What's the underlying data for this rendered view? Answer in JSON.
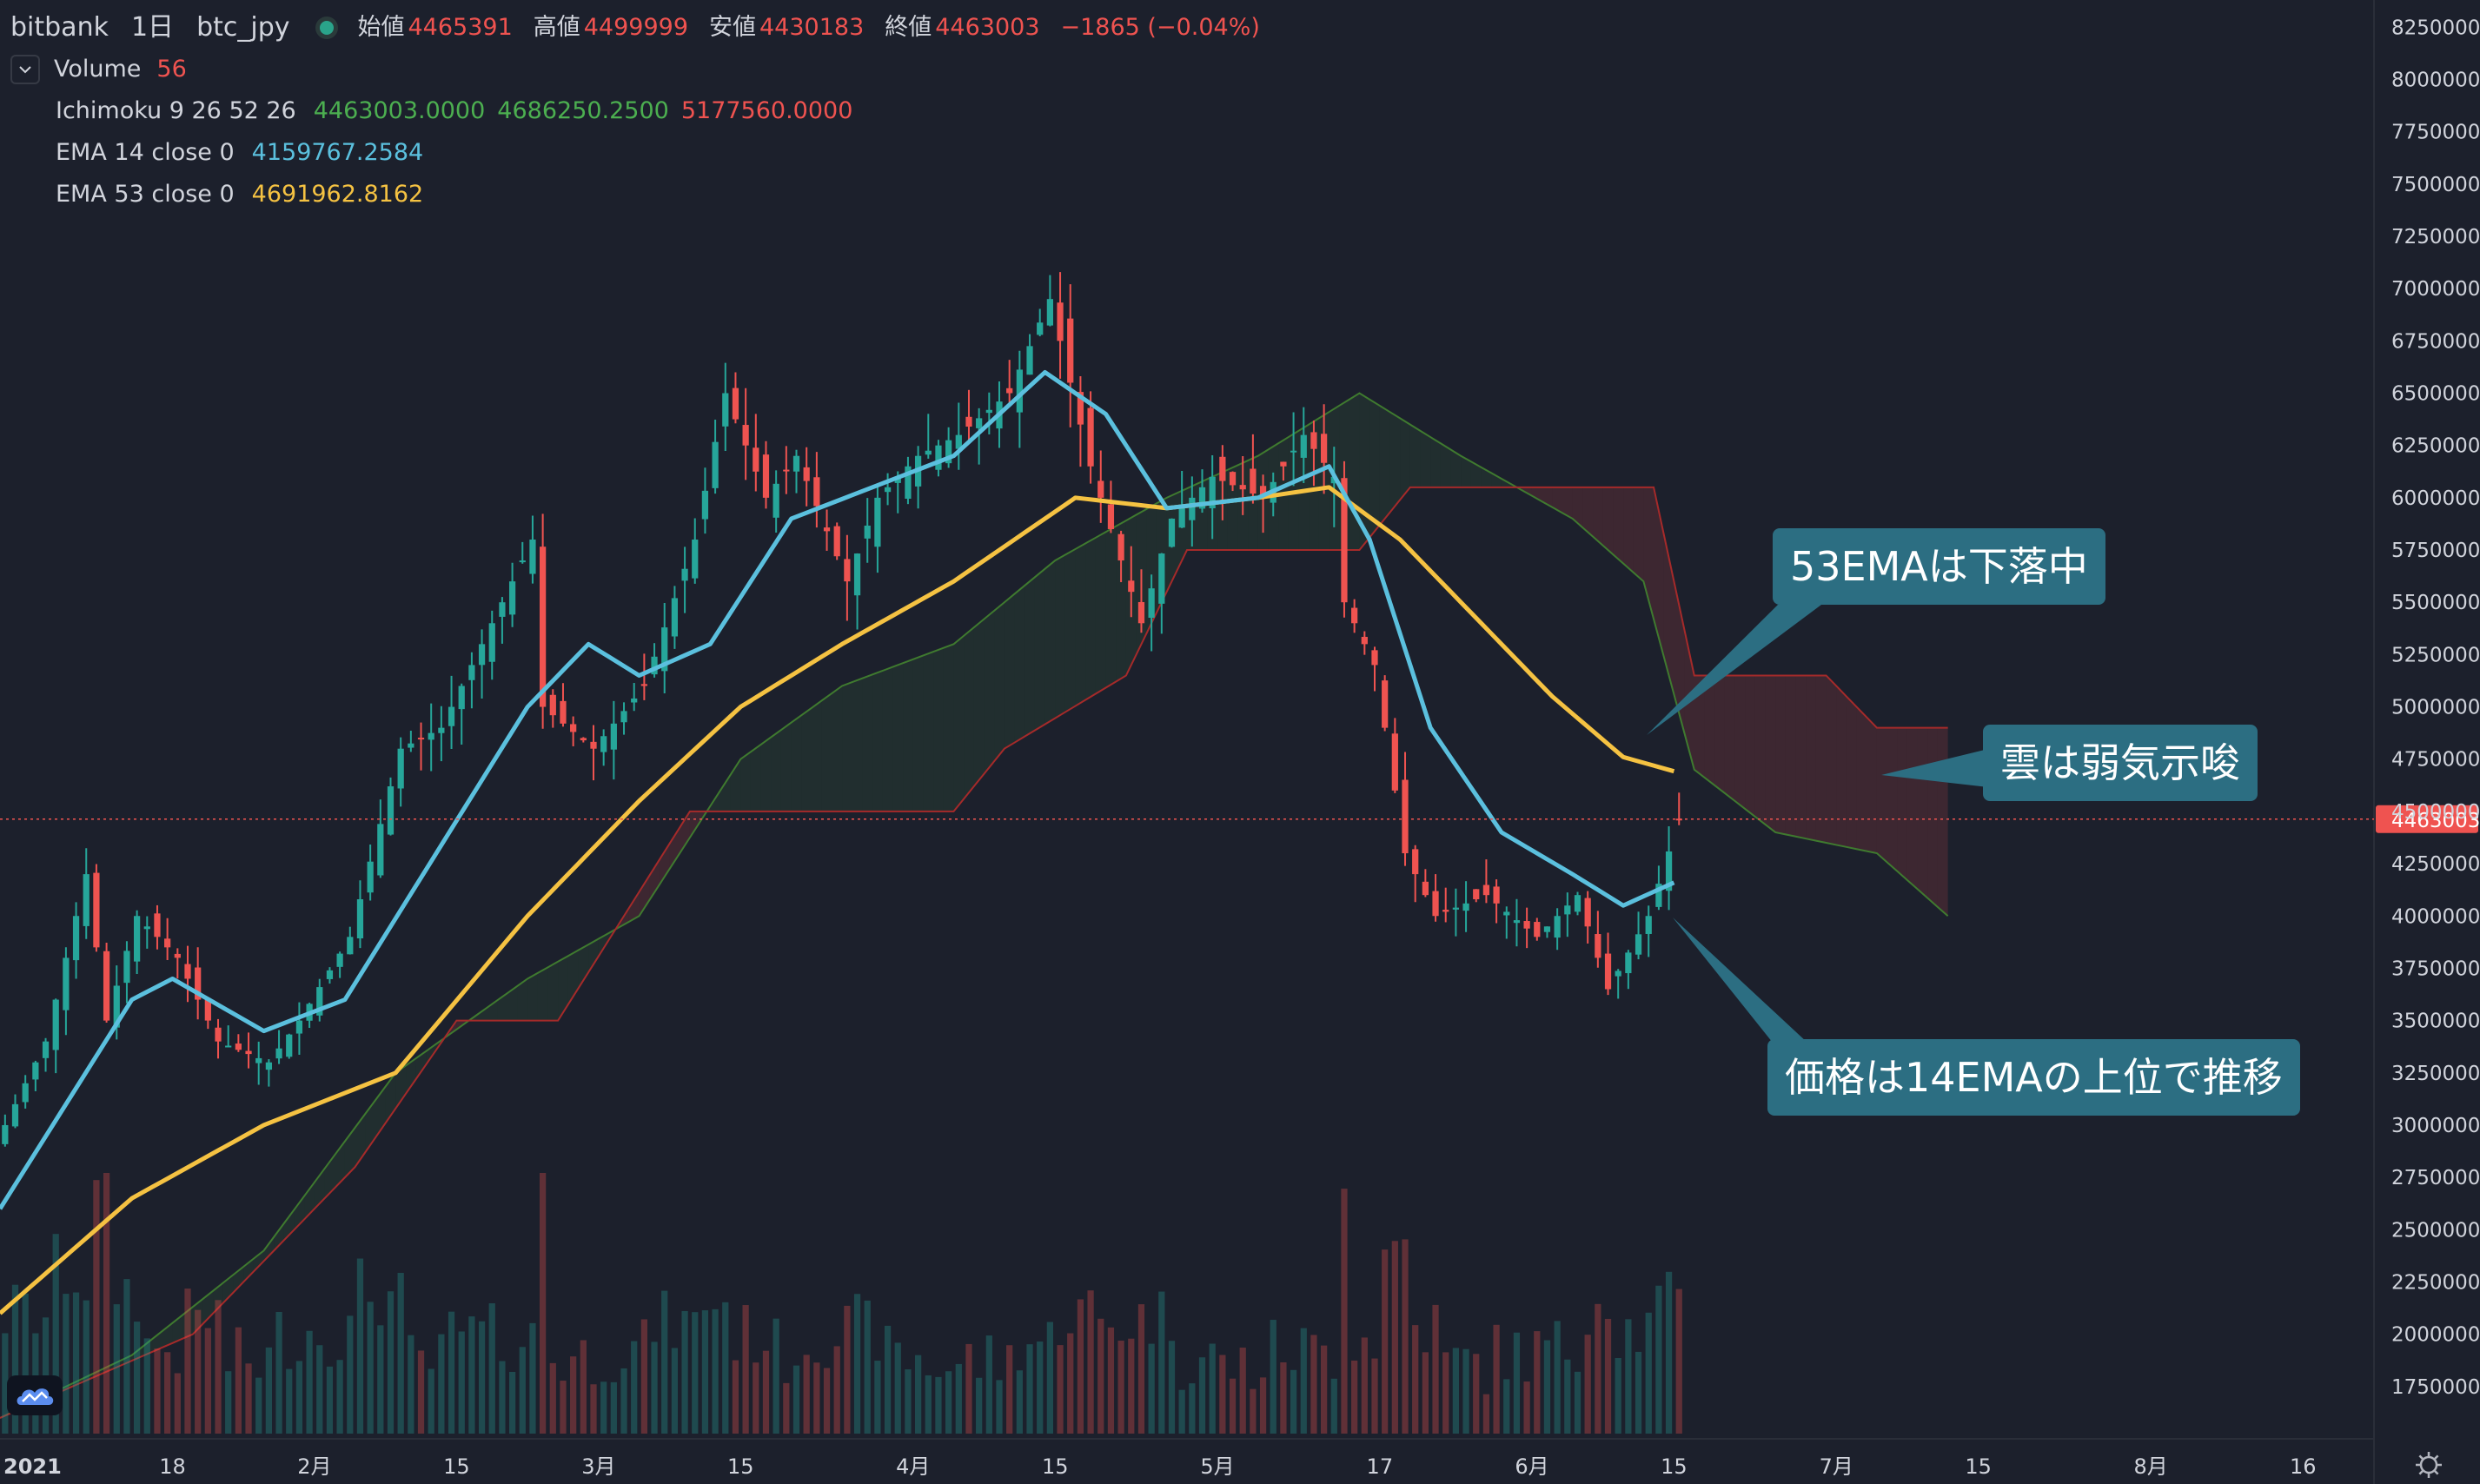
{
  "header": {
    "exchange": "bitbank",
    "interval": "1日",
    "symbol": "btc_jpy",
    "open_label": "始値",
    "open": "4465391",
    "high_label": "高値",
    "high": "4499999",
    "low_label": "安値",
    "low": "4430183",
    "close_label": "終値",
    "close": "4463003",
    "change": "−1865 (−0.04%)"
  },
  "indicators": {
    "volume": {
      "label": "Volume",
      "value": "56"
    },
    "ichimoku": {
      "label": "Ichimoku 9 26 52 26",
      "v1": "4463003.0000",
      "v2": "4686250.2500",
      "v3": "5177560.0000"
    },
    "ema14": {
      "label": "EMA 14 close 0",
      "value": "4159767.2584"
    },
    "ema53": {
      "label": "EMA 53 close 0",
      "value": "4691962.8162"
    }
  },
  "price_tag": "4463003",
  "callouts": {
    "ema53": "53EMAは下落中",
    "cloud": "雲は弱気示唆",
    "price": "価格は14EMAの上位で推移"
  },
  "colors": {
    "background": "#1c202c",
    "up": "#26a69a",
    "down": "#ef5350",
    "ema14": "#5bc0de",
    "ema53": "#f5c242",
    "span_a": "#4caf50",
    "span_b": "#ef5350",
    "callout": "#2c6e82"
  },
  "chart_data": {
    "type": "candlestick",
    "y_axis_ticks": [
      8250000,
      8000000,
      7750000,
      7500000,
      7250000,
      7000000,
      6750000,
      6500000,
      6250000,
      6000000,
      5750000,
      5500000,
      5250000,
      5000000,
      4750000,
      4500000,
      4250000,
      4000000,
      3750000,
      3500000,
      3250000,
      3000000,
      2750000,
      2500000,
      2250000,
      2000000,
      1750000
    ],
    "ylim": [
      1500000,
      8380000
    ],
    "x_axis_labels": [
      {
        "label": "2021",
        "date": "2021-01-01"
      },
      {
        "label": "18",
        "date": "2021-01-18"
      },
      {
        "label": "2月",
        "date": "2021-02-01"
      },
      {
        "label": "15",
        "date": "2021-02-15"
      },
      {
        "label": "3月",
        "date": "2021-03-01"
      },
      {
        "label": "15",
        "date": "2021-03-15"
      },
      {
        "label": "4月",
        "date": "2021-04-01"
      },
      {
        "label": "15",
        "date": "2021-04-15"
      },
      {
        "label": "5月",
        "date": "2021-05-01"
      },
      {
        "label": "17",
        "date": "2021-05-17"
      },
      {
        "label": "6月",
        "date": "2021-06-01"
      },
      {
        "label": "15",
        "date": "2021-06-15"
      },
      {
        "label": "7月",
        "date": "2021-07-01"
      },
      {
        "label": "15",
        "date": "2021-07-15"
      },
      {
        "label": "8月",
        "date": "2021-08-01"
      },
      {
        "label": "16",
        "date": "2021-08-16"
      }
    ],
    "xlim": [
      "2021-01-01",
      "2021-08-23"
    ],
    "close_keypoints": [
      [
        "2021-01-01",
        3000000
      ],
      [
        "2021-01-05",
        3400000
      ],
      [
        "2021-01-09",
        4200000
      ],
      [
        "2021-01-11",
        3500000
      ],
      [
        "2021-01-14",
        4000000
      ],
      [
        "2021-01-18",
        3800000
      ],
      [
        "2021-01-22",
        3400000
      ],
      [
        "2021-01-27",
        3300000
      ],
      [
        "2021-01-30",
        3500000
      ],
      [
        "2021-02-04",
        3900000
      ],
      [
        "2021-02-09",
        4800000
      ],
      [
        "2021-02-13",
        4900000
      ],
      [
        "2021-02-19",
        5500000
      ],
      [
        "2021-02-22",
        5800000
      ],
      [
        "2021-02-23",
        5000000
      ],
      [
        "2021-02-28",
        4800000
      ],
      [
        "2021-03-05",
        5100000
      ],
      [
        "2021-03-10",
        5800000
      ],
      [
        "2021-03-13",
        6500000
      ],
      [
        "2021-03-17",
        6000000
      ],
      [
        "2021-03-20",
        6200000
      ],
      [
        "2021-03-25",
        5600000
      ],
      [
        "2021-03-28",
        6000000
      ],
      [
        "2021-04-01",
        6200000
      ],
      [
        "2021-04-05",
        6300000
      ],
      [
        "2021-04-10",
        6500000
      ],
      [
        "2021-04-14",
        6950000
      ],
      [
        "2021-04-18",
        6150000
      ],
      [
        "2021-04-23",
        5400000
      ],
      [
        "2021-04-26",
        5900000
      ],
      [
        "2021-04-30",
        6100000
      ],
      [
        "2021-05-05",
        6000000
      ],
      [
        "2021-05-09",
        6300000
      ],
      [
        "2021-05-12",
        6100000
      ],
      [
        "2021-05-13",
        5500000
      ],
      [
        "2021-05-16",
        5200000
      ],
      [
        "2021-05-19",
        4300000
      ],
      [
        "2021-05-22",
        4000000
      ],
      [
        "2021-05-27",
        4100000
      ],
      [
        "2021-06-01",
        3900000
      ],
      [
        "2021-06-05",
        4100000
      ],
      [
        "2021-06-08",
        3650000
      ],
      [
        "2021-06-12",
        4000000
      ],
      [
        "2021-06-15",
        4463003
      ]
    ],
    "ema14_keypoints": [
      [
        "2021-01-01",
        2600000
      ],
      [
        "2021-01-14",
        3600000
      ],
      [
        "2021-01-18",
        3700000
      ],
      [
        "2021-01-27",
        3450000
      ],
      [
        "2021-02-04",
        3600000
      ],
      [
        "2021-02-13",
        4300000
      ],
      [
        "2021-02-22",
        5000000
      ],
      [
        "2021-02-28",
        5300000
      ],
      [
        "2021-03-05",
        5150000
      ],
      [
        "2021-03-12",
        5300000
      ],
      [
        "2021-03-20",
        5900000
      ],
      [
        "2021-03-28",
        6050000
      ],
      [
        "2021-04-05",
        6200000
      ],
      [
        "2021-04-14",
        6600000
      ],
      [
        "2021-04-20",
        6400000
      ],
      [
        "2021-04-26",
        5950000
      ],
      [
        "2021-05-05",
        6000000
      ],
      [
        "2021-05-12",
        6150000
      ],
      [
        "2021-05-16",
        5800000
      ],
      [
        "2021-05-22",
        4900000
      ],
      [
        "2021-05-29",
        4400000
      ],
      [
        "2021-06-05",
        4200000
      ],
      [
        "2021-06-10",
        4050000
      ],
      [
        "2021-06-15",
        4159767
      ]
    ],
    "ema53_keypoints": [
      [
        "2021-01-01",
        2100000
      ],
      [
        "2021-01-14",
        2650000
      ],
      [
        "2021-01-27",
        3000000
      ],
      [
        "2021-02-09",
        3250000
      ],
      [
        "2021-02-22",
        4000000
      ],
      [
        "2021-03-05",
        4550000
      ],
      [
        "2021-03-15",
        5000000
      ],
      [
        "2021-03-25",
        5300000
      ],
      [
        "2021-04-05",
        5600000
      ],
      [
        "2021-04-17",
        6000000
      ],
      [
        "2021-04-26",
        5950000
      ],
      [
        "2021-05-05",
        6000000
      ],
      [
        "2021-05-12",
        6050000
      ],
      [
        "2021-05-19",
        5800000
      ],
      [
        "2021-05-26",
        5450000
      ],
      [
        "2021-06-03",
        5050000
      ],
      [
        "2021-06-10",
        4760000
      ],
      [
        "2021-06-15",
        4691962
      ]
    ],
    "span_a_keypoints": [
      [
        "2021-01-01",
        1600000
      ],
      [
        "2021-01-14",
        1900000
      ],
      [
        "2021-01-27",
        2400000
      ],
      [
        "2021-02-09",
        3250000
      ],
      [
        "2021-02-22",
        3700000
      ],
      [
        "2021-03-05",
        4000000
      ],
      [
        "2021-03-15",
        4750000
      ],
      [
        "2021-03-25",
        5100000
      ],
      [
        "2021-04-05",
        5300000
      ],
      [
        "2021-04-15",
        5700000
      ],
      [
        "2021-04-26",
        6000000
      ],
      [
        "2021-05-05",
        6200000
      ],
      [
        "2021-05-15",
        6500000
      ],
      [
        "2021-05-25",
        6200000
      ],
      [
        "2021-06-05",
        5900000
      ],
      [
        "2021-06-12",
        5600000
      ],
      [
        "2021-06-17",
        4700000
      ],
      [
        "2021-06-25",
        4400000
      ],
      [
        "2021-07-05",
        4300000
      ],
      [
        "2021-07-12",
        4000000
      ]
    ],
    "span_b_keypoints": [
      [
        "2021-01-01",
        1600000
      ],
      [
        "2021-01-20",
        2000000
      ],
      [
        "2021-02-05",
        2800000
      ],
      [
        "2021-02-15",
        3500000
      ],
      [
        "2021-02-25",
        3500000
      ],
      [
        "2021-03-10",
        4500000
      ],
      [
        "2021-03-20",
        4500000
      ],
      [
        "2021-04-05",
        4500000
      ],
      [
        "2021-04-10",
        4800000
      ],
      [
        "2021-04-22",
        5150000
      ],
      [
        "2021-04-28",
        5750000
      ],
      [
        "2021-05-15",
        5750000
      ],
      [
        "2021-05-20",
        6050000
      ],
      [
        "2021-06-13",
        6050000
      ],
      [
        "2021-06-17",
        5150000
      ],
      [
        "2021-06-30",
        5150000
      ],
      [
        "2021-07-05",
        4900000
      ],
      [
        "2021-07-12",
        4900000
      ]
    ]
  }
}
